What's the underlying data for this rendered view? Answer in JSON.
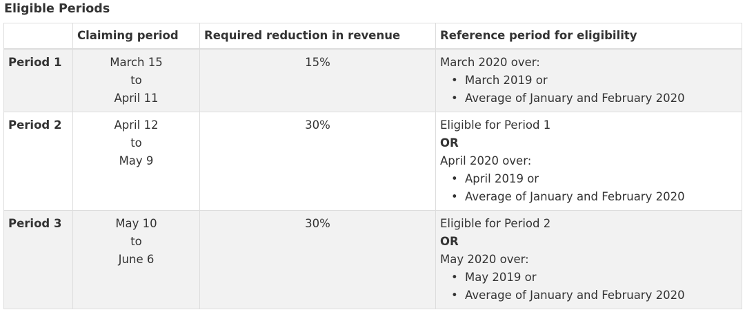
{
  "caption": "Eligible Periods",
  "headers": {
    "col0": "",
    "col1": "Claiming period",
    "col2": "Required reduction in revenue",
    "col3": "Reference period for eligibility"
  },
  "rows": [
    {
      "period": "Period 1",
      "claim_start": "March 15",
      "claim_to": "to",
      "claim_end": "April 11",
      "reduction": "15%",
      "ref_prefix": "",
      "ref_or": "",
      "ref_heading": "March 2020 over:",
      "bullets": [
        "March 2019 or",
        "Average of January and February 2020"
      ]
    },
    {
      "period": "Period 2",
      "claim_start": "April 12",
      "claim_to": "to",
      "claim_end": "May 9",
      "reduction": "30%",
      "ref_prefix": "Eligible for Period 1",
      "ref_or": "OR",
      "ref_heading": "April 2020 over:",
      "bullets": [
        "April 2019 or",
        "Average of January and February 2020"
      ]
    },
    {
      "period": "Period 3",
      "claim_start": "May 10",
      "claim_to": "to",
      "claim_end": "June 6",
      "reduction": "30%",
      "ref_prefix": "Eligible for Period 2",
      "ref_or": "OR",
      "ref_heading": "May 2020 over:",
      "bullets": [
        "May 2019 or",
        "Average of January and February 2020"
      ]
    }
  ]
}
